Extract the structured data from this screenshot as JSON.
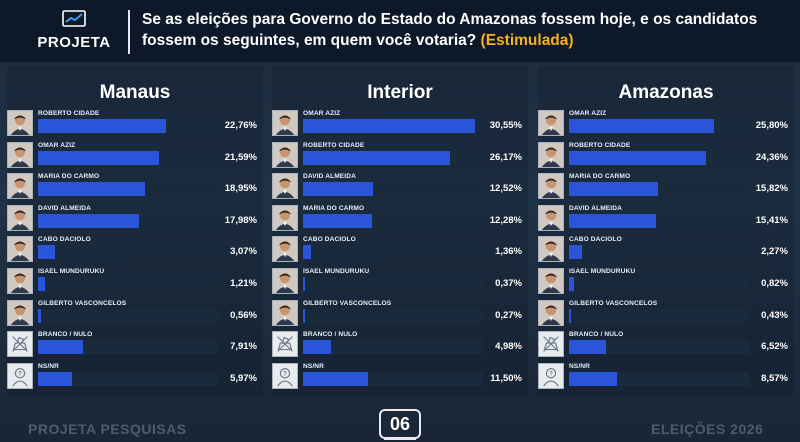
{
  "header": {
    "brand": "PROJETA",
    "question_main": "Se as eleições para Governo do Estado do Amazonas fossem hoje, e os candidatos fossem os seguintes, em quem você votaria?",
    "question_highlight": "(Estimulada)"
  },
  "footer": {
    "left": "PROJETA PESQUISAS",
    "page": "06",
    "right": "ELEIÇÕES 2026"
  },
  "colors": {
    "bar": "#2a55d8",
    "highlight": "#f5b025",
    "header_bg": "#0d1828"
  },
  "chart_data": [
    {
      "type": "bar",
      "title": "Manaus",
      "categories": [
        "ROBERTO CIDADE",
        "OMAR AZIZ",
        "MARIA DO CARMO",
        "DAVID ALMEIDA",
        "CABO DACIOLO",
        "ISAEL MUNDURUKU",
        "GILBERTO VASCONCELOS",
        "BRANCO / NULO",
        "NS/NR"
      ],
      "values": [
        22.76,
        21.59,
        18.95,
        17.98,
        3.07,
        1.21,
        0.56,
        7.91,
        5.97
      ],
      "labels": [
        "22,76%",
        "21,59%",
        "18,95%",
        "17,98%",
        "3,07%",
        "1,21%",
        "0,56%",
        "7,91%",
        "5,97%"
      ],
      "avatars": [
        "person-photo-icon",
        "person-photo-icon",
        "person-photo-icon",
        "person-photo-icon",
        "person-photo-icon",
        "person-photo-icon",
        "person-photo-icon",
        "ballot-box-icon",
        "question-person-icon"
      ]
    },
    {
      "type": "bar",
      "title": "Interior",
      "categories": [
        "OMAR AZIZ",
        "ROBERTO CIDADE",
        "DAVID ALMEIDA",
        "MARIA DO CARMO",
        "CABO DACIOLO",
        "ISAEL MUNDURUKU",
        "GILBERTO VASCONCELOS",
        "BRANCO / NULO",
        "NS/NR"
      ],
      "values": [
        30.55,
        26.17,
        12.52,
        12.28,
        1.36,
        0.37,
        0.27,
        4.98,
        11.5
      ],
      "labels": [
        "30,55%",
        "26,17%",
        "12,52%",
        "12,28%",
        "1,36%",
        "0,37%",
        "0,27%",
        "4,98%",
        "11,50%"
      ],
      "avatars": [
        "person-photo-icon",
        "person-photo-icon",
        "person-photo-icon",
        "person-photo-icon",
        "person-photo-icon",
        "person-photo-icon",
        "person-photo-icon",
        "ballot-box-icon",
        "question-person-icon"
      ]
    },
    {
      "type": "bar",
      "title": "Amazonas",
      "categories": [
        "OMAR AZIZ",
        "ROBERTO CIDADE",
        "MARIA DO CARMO",
        "DAVID ALMEIDA",
        "CABO DACIOLO",
        "ISAEL MUNDURUKU",
        "GILBERTO VASCONCELOS",
        "BRANCO / NULO",
        "NS/NR"
      ],
      "values": [
        25.8,
        24.36,
        15.82,
        15.41,
        2.27,
        0.82,
        0.43,
        6.52,
        8.57
      ],
      "labels": [
        "25,80%",
        "24,36%",
        "15,82%",
        "15,41%",
        "2,27%",
        "0,82%",
        "0,43%",
        "6,52%",
        "8,57%"
      ],
      "avatars": [
        "person-photo-icon",
        "person-photo-icon",
        "person-photo-icon",
        "person-photo-icon",
        "person-photo-icon",
        "person-photo-icon",
        "person-photo-icon",
        "ballot-box-icon",
        "question-person-icon"
      ]
    }
  ]
}
